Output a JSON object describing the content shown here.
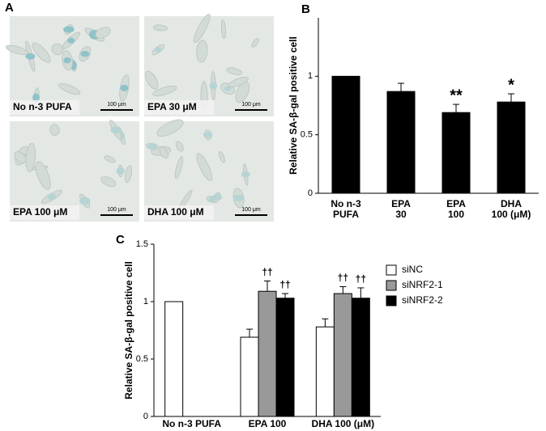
{
  "panel_labels": [
    "A",
    "B",
    "C"
  ],
  "images": [
    {
      "label": "No n-3 PUFA",
      "scale": "100 μm"
    },
    {
      "label": "EPA 30 μM",
      "scale": "100 μm"
    },
    {
      "label": "EPA 100 μM",
      "scale": "100 μm"
    },
    {
      "label": "DHA 100 μM",
      "scale": "100 μm"
    }
  ],
  "chart_data": [
    {
      "type": "bar",
      "ylabel": "Relative SA-β-gal positive cell",
      "categories": [
        [
          "No n-3",
          "PUFA"
        ],
        [
          "EPA",
          "30"
        ],
        [
          "EPA",
          "100"
        ],
        [
          "DHA",
          "100 (μM)"
        ]
      ],
      "values": [
        1.0,
        0.87,
        0.69,
        0.78
      ],
      "errors": [
        null,
        0.07,
        0.07,
        0.07
      ],
      "significance": [
        null,
        null,
        "**",
        "*"
      ],
      "color": "#000000",
      "ylim": [
        0,
        1.5
      ],
      "yticks": [
        0,
        0.5,
        1
      ]
    },
    {
      "type": "grouped_bar",
      "ylabel": "Relative SA-β-gal positive cell",
      "categories": [
        "No n-3 PUFA",
        "EPA 100",
        "DHA 100 (μM)"
      ],
      "series": [
        {
          "name": "siNC",
          "color": "#ffffff",
          "values": [
            1.0,
            0.69,
            0.78
          ],
          "errors": [
            null,
            0.07,
            0.07
          ],
          "significance": [
            null,
            null,
            null
          ]
        },
        {
          "name": "siNRF2-1",
          "color": "#999999",
          "values": [
            null,
            1.09,
            1.07
          ],
          "errors": [
            null,
            0.09,
            0.06
          ],
          "significance": [
            null,
            "††",
            "††"
          ]
        },
        {
          "name": "siNRF2-2",
          "color": "#000000",
          "values": [
            null,
            1.03,
            1.03
          ],
          "errors": [
            null,
            0.04,
            0.09
          ],
          "significance": [
            null,
            "††",
            "††"
          ]
        }
      ],
      "ylim": [
        0,
        1.5
      ],
      "yticks": [
        0,
        0.5,
        1,
        1.5
      ]
    }
  ]
}
